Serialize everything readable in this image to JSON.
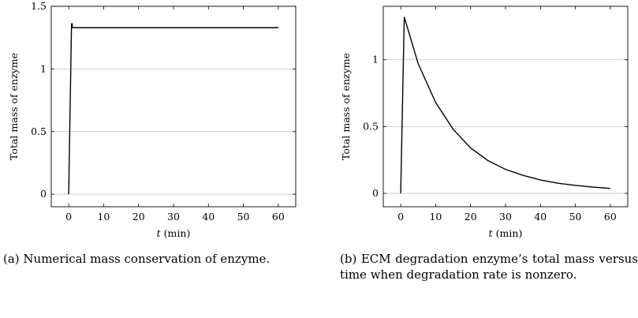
{
  "chart_data": [
    {
      "type": "line",
      "xlabel": "(min)",
      "xlabel_var": "t",
      "ylabel": "Total mass of enzyme",
      "xlim": [
        -5,
        65
      ],
      "ylim": [
        -0.1,
        1.5
      ],
      "xticks": [
        "0",
        "10",
        "20",
        "30",
        "40",
        "50",
        "60"
      ],
      "yticks": [
        "0",
        "0.5",
        "1",
        "1.5"
      ],
      "grid": "horizontal",
      "series": [
        {
          "x": [
            0,
            0.8,
            1.0,
            1.0,
            2,
            10,
            20,
            30,
            40,
            50,
            60
          ],
          "y": [
            0,
            1.36,
            1.36,
            1.33,
            1.33,
            1.33,
            1.33,
            1.33,
            1.33,
            1.33,
            1.33
          ]
        }
      ],
      "caption": "(a) Numerical mass conservation of enzyme."
    },
    {
      "type": "line",
      "xlabel": "(min)",
      "xlabel_var": "t",
      "ylabel": "Total mass of enzyme",
      "xlim": [
        -5,
        65
      ],
      "ylim": [
        -0.1,
        1.4
      ],
      "xticks": [
        "0",
        "10",
        "20",
        "30",
        "40",
        "50",
        "60"
      ],
      "yticks": [
        "0",
        "0.5",
        "1"
      ],
      "grid": "horizontal",
      "series": [
        {
          "x": [
            0,
            1,
            5,
            10,
            15,
            20,
            25,
            30,
            35,
            40,
            45,
            50,
            55,
            60
          ],
          "y": [
            0,
            1.32,
            0.97,
            0.68,
            0.48,
            0.34,
            0.245,
            0.18,
            0.135,
            0.1,
            0.076,
            0.06,
            0.047,
            0.037
          ]
        }
      ],
      "caption": "(b) ECM degradation enzyme’s total mass versus time when degradation rate is nonzero."
    }
  ]
}
